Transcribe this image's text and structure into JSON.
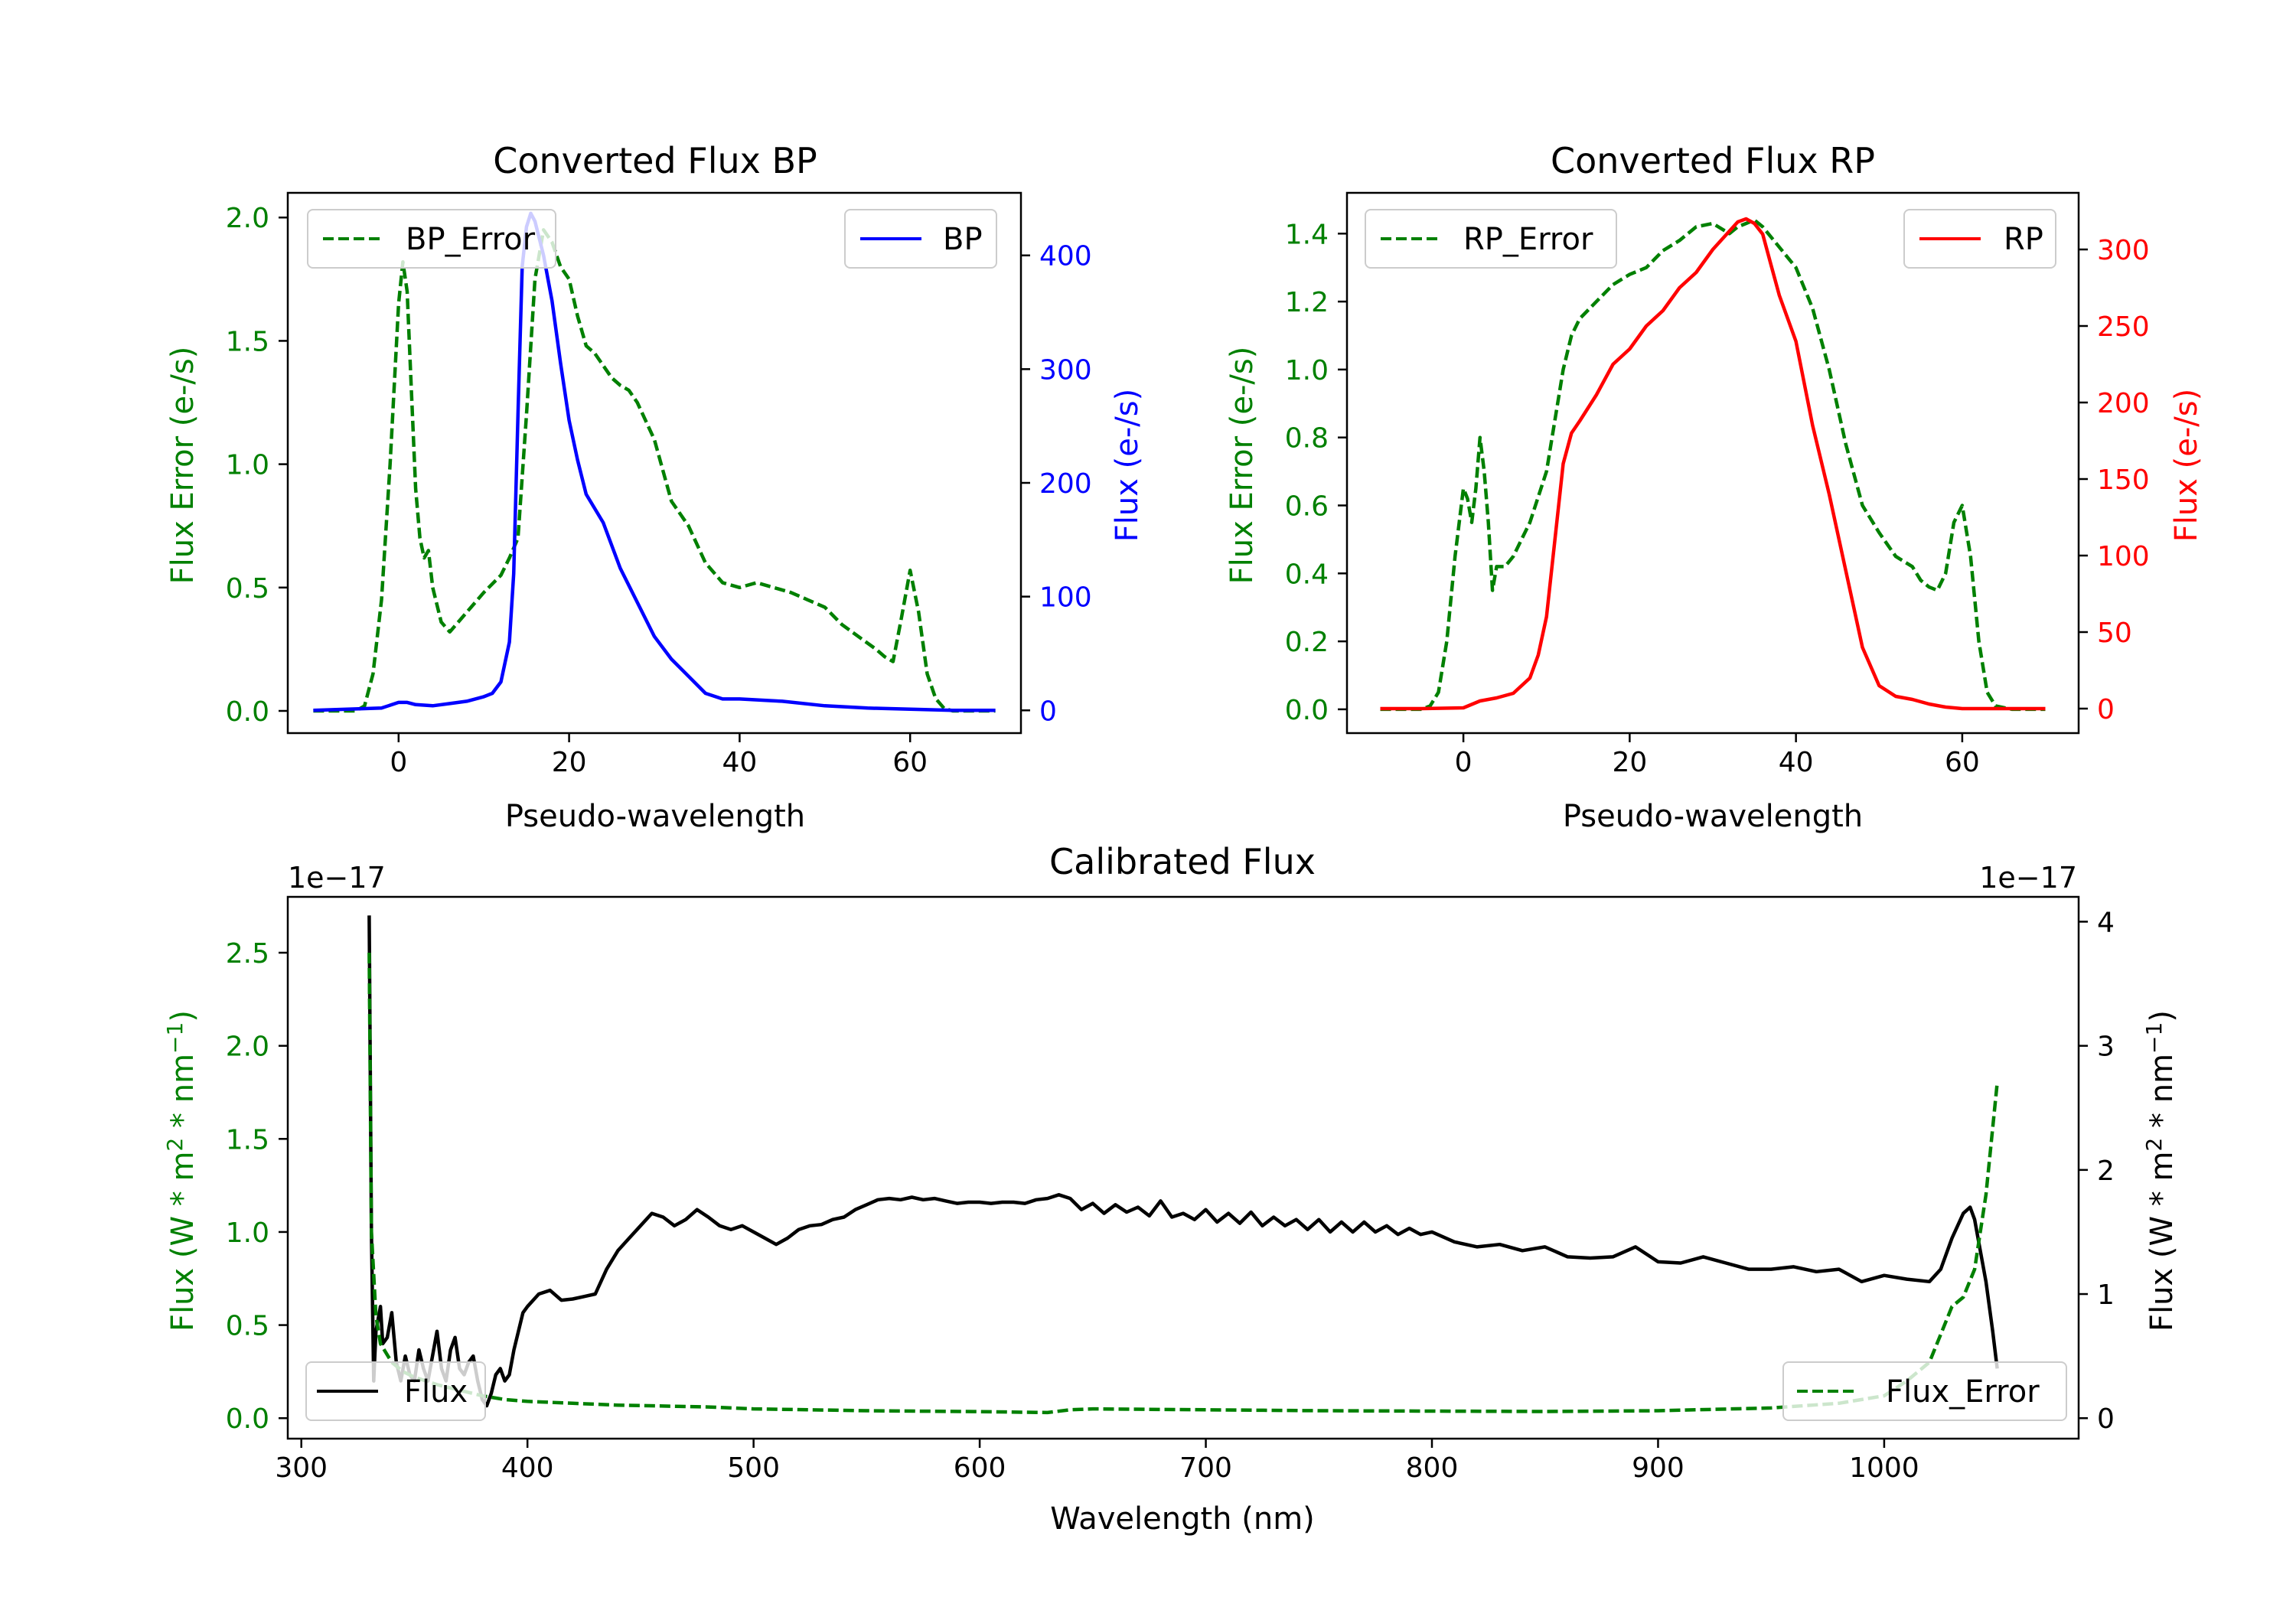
{
  "chart_data": [
    {
      "type": "line",
      "title": "Converted Flux BP",
      "xlabel": "Pseudo-wavelength",
      "ylabel_left": "Flux Error (e-/s)",
      "ylabel_right": "Flux (e-/s)",
      "xlim": [
        -13,
        73
      ],
      "ylim_left": [
        -0.09,
        2.1
      ],
      "ylim_right": [
        -20,
        455
      ],
      "xticks": [
        0,
        20,
        40,
        60
      ],
      "yticks_left": [
        0.0,
        0.5,
        1.0,
        1.5,
        2.0
      ],
      "yticks_right": [
        0,
        100,
        200,
        300,
        400
      ],
      "left_color": "#008000",
      "right_color": "#0000ff",
      "series": [
        {
          "name": "BP_Error",
          "axis": "left",
          "style": "dashed",
          "color": "#008000",
          "x": [
            -10,
            -5,
            -4,
            -3,
            -2,
            -1,
            0,
            0.5,
            1,
            1.5,
            2,
            2.5,
            3,
            3.5,
            4,
            5,
            6,
            8,
            10,
            12,
            13,
            14,
            15,
            16,
            17,
            18,
            19,
            20,
            21,
            22,
            23,
            24,
            25,
            26,
            27,
            28,
            30,
            32,
            34,
            36,
            38,
            40,
            42,
            44,
            46,
            48,
            50,
            52,
            54,
            56,
            57,
            58,
            59,
            60,
            61,
            62,
            63,
            64,
            65,
            66,
            68,
            70
          ],
          "y": [
            0,
            0,
            0.02,
            0.15,
            0.45,
            1.0,
            1.65,
            1.82,
            1.7,
            1.3,
            0.9,
            0.7,
            0.62,
            0.65,
            0.5,
            0.36,
            0.32,
            0.4,
            0.48,
            0.55,
            0.62,
            0.7,
            1.2,
            1.75,
            1.95,
            1.9,
            1.8,
            1.75,
            1.6,
            1.48,
            1.45,
            1.4,
            1.35,
            1.32,
            1.3,
            1.25,
            1.1,
            0.85,
            0.75,
            0.6,
            0.52,
            0.5,
            0.52,
            0.5,
            0.48,
            0.45,
            0.42,
            0.35,
            0.3,
            0.25,
            0.22,
            0.2,
            0.38,
            0.57,
            0.4,
            0.15,
            0.05,
            0.01,
            0,
            0,
            0,
            0
          ]
        },
        {
          "name": "BP",
          "axis": "right",
          "style": "solid",
          "color": "#0000ff",
          "x": [
            -10,
            -2,
            0,
            1,
            2,
            4,
            6,
            8,
            10,
            11,
            12,
            13,
            13.5,
            14,
            14.5,
            15,
            15.5,
            16,
            17,
            18,
            19,
            20,
            21,
            22,
            24,
            26,
            28,
            30,
            32,
            34,
            36,
            38,
            40,
            45,
            50,
            55,
            60,
            65,
            70
          ],
          "y": [
            0,
            2,
            7,
            7,
            5,
            4,
            6,
            8,
            12,
            15,
            25,
            60,
            120,
            260,
            390,
            425,
            437,
            430,
            400,
            360,
            305,
            255,
            220,
            190,
            165,
            125,
            95,
            65,
            45,
            30,
            15,
            10,
            10,
            8,
            4,
            2,
            1,
            0,
            0
          ]
        }
      ],
      "legend": [
        {
          "label": "BP_Error",
          "position": "upper left"
        },
        {
          "label": "BP",
          "position": "upper right"
        }
      ]
    },
    {
      "type": "line",
      "title": "Converted Flux RP",
      "xlabel": "Pseudo-wavelength",
      "ylabel_left": "Flux Error (e-/s)",
      "ylabel_right": "Flux (e-/s)",
      "xlim": [
        -14,
        74
      ],
      "ylim_left": [
        -0.07,
        1.52
      ],
      "ylim_right": [
        -16,
        337
      ],
      "xticks": [
        0,
        20,
        40,
        60
      ],
      "yticks_left": [
        0.0,
        0.2,
        0.4,
        0.6,
        0.8,
        1.0,
        1.2,
        1.4
      ],
      "yticks_right": [
        0,
        50,
        100,
        150,
        200,
        250,
        300
      ],
      "left_color": "#008000",
      "right_color": "#ff0000",
      "series": [
        {
          "name": "RP_Error",
          "axis": "left",
          "style": "dashed",
          "color": "#008000",
          "x": [
            -10,
            -5,
            -4,
            -3,
            -2,
            -1,
            0,
            0.5,
            1,
            1.5,
            2,
            2.5,
            3,
            3.5,
            4,
            5,
            6,
            7,
            8,
            10,
            11,
            12,
            13,
            14,
            16,
            18,
            20,
            22,
            24,
            26,
            28,
            30,
            32,
            33,
            34,
            35,
            36,
            38,
            40,
            42,
            44,
            46,
            48,
            50,
            52,
            54,
            55,
            56,
            57,
            58,
            59,
            60,
            61,
            62,
            63,
            64,
            66,
            70
          ],
          "y": [
            0,
            0,
            0.01,
            0.05,
            0.2,
            0.45,
            0.65,
            0.62,
            0.55,
            0.65,
            0.8,
            0.7,
            0.55,
            0.35,
            0.42,
            0.42,
            0.45,
            0.5,
            0.55,
            0.7,
            0.85,
            1.0,
            1.1,
            1.15,
            1.2,
            1.25,
            1.28,
            1.3,
            1.35,
            1.38,
            1.42,
            1.43,
            1.4,
            1.42,
            1.43,
            1.44,
            1.42,
            1.36,
            1.3,
            1.18,
            1.0,
            0.78,
            0.6,
            0.52,
            0.45,
            0.42,
            0.38,
            0.36,
            0.35,
            0.4,
            0.55,
            0.6,
            0.45,
            0.2,
            0.05,
            0.01,
            0,
            0
          ]
        },
        {
          "name": "RP",
          "axis": "right",
          "style": "solid",
          "color": "#ff0000",
          "x": [
            -10,
            -5,
            0,
            2,
            4,
            6,
            8,
            9,
            10,
            11,
            12,
            13,
            14,
            16,
            18,
            20,
            22,
            24,
            26,
            28,
            30,
            32,
            33,
            34,
            35,
            36,
            37,
            38,
            40,
            42,
            44,
            46,
            48,
            50,
            52,
            54,
            56,
            58,
            60,
            65,
            70
          ],
          "y": [
            0,
            0,
            0.5,
            5,
            7,
            10,
            20,
            35,
            60,
            110,
            160,
            180,
            188,
            205,
            225,
            235,
            250,
            260,
            275,
            285,
            300,
            312,
            318,
            320,
            317,
            310,
            290,
            270,
            240,
            185,
            140,
            90,
            40,
            15,
            8,
            6,
            3,
            1,
            0,
            0,
            0
          ]
        }
      ],
      "legend": [
        {
          "label": "RP_Error",
          "position": "upper left"
        },
        {
          "label": "RP",
          "position": "upper right"
        }
      ]
    },
    {
      "type": "line",
      "title": "Calibrated Flux",
      "xlabel": "Wavelength (nm)",
      "ylabel_left": "Flux (W * m^2 * nm^-1)",
      "ylabel_right": "Flux (W * m^2 * nm^-1)",
      "offset_text_left": "1e−17",
      "offset_text_right": "1e−17",
      "xlim": [
        294,
        1086
      ],
      "ylim_left": [
        -0.11,
        2.8
      ],
      "ylim_right": [
        -0.165,
        4.2
      ],
      "xticks": [
        300,
        400,
        500,
        600,
        700,
        800,
        900,
        1000
      ],
      "yticks_left": [
        0.0,
        0.5,
        1.0,
        1.5,
        2.0,
        2.5
      ],
      "yticks_right": [
        0,
        1,
        2,
        3,
        4
      ],
      "left_color": "#008000",
      "right_color": "#000000",
      "series": [
        {
          "name": "Flux",
          "axis": "right",
          "style": "solid",
          "color": "#000000",
          "x": [
            330,
            331,
            332,
            333,
            335,
            336,
            338,
            340,
            342,
            344,
            346,
            348,
            350,
            352,
            354,
            356,
            358,
            360,
            362,
            364,
            366,
            368,
            370,
            372,
            374,
            376,
            378,
            380,
            382,
            384,
            386,
            388,
            390,
            392,
            394,
            396,
            398,
            400,
            405,
            410,
            415,
            420,
            425,
            430,
            435,
            440,
            445,
            450,
            455,
            460,
            465,
            470,
            475,
            480,
            485,
            490,
            495,
            500,
            505,
            510,
            515,
            520,
            525,
            530,
            535,
            540,
            545,
            550,
            555,
            560,
            565,
            570,
            575,
            580,
            585,
            590,
            595,
            600,
            605,
            610,
            615,
            620,
            625,
            630,
            635,
            640,
            645,
            650,
            655,
            660,
            665,
            670,
            675,
            680,
            685,
            690,
            695,
            700,
            705,
            710,
            715,
            720,
            725,
            730,
            735,
            740,
            745,
            750,
            755,
            760,
            765,
            770,
            775,
            780,
            785,
            790,
            795,
            800,
            810,
            820,
            830,
            840,
            850,
            860,
            870,
            880,
            890,
            900,
            910,
            920,
            930,
            940,
            950,
            960,
            970,
            980,
            990,
            1000,
            1010,
            1020,
            1025,
            1030,
            1035,
            1038,
            1040,
            1042,
            1045,
            1048,
            1050
          ],
          "y": [
            4.05,
            1.5,
            0.3,
            0.7,
            0.9,
            0.6,
            0.65,
            0.85,
            0.45,
            0.3,
            0.5,
            0.35,
            0.3,
            0.55,
            0.4,
            0.3,
            0.5,
            0.7,
            0.4,
            0.3,
            0.55,
            0.65,
            0.4,
            0.35,
            0.45,
            0.5,
            0.3,
            0.15,
            0.1,
            0.2,
            0.35,
            0.4,
            0.3,
            0.35,
            0.55,
            0.7,
            0.85,
            0.9,
            1.0,
            1.03,
            0.95,
            0.96,
            0.98,
            1.0,
            1.2,
            1.35,
            1.45,
            1.55,
            1.65,
            1.62,
            1.55,
            1.6,
            1.68,
            1.62,
            1.55,
            1.52,
            1.55,
            1.5,
            1.45,
            1.4,
            1.45,
            1.52,
            1.55,
            1.56,
            1.6,
            1.62,
            1.68,
            1.72,
            1.76,
            1.77,
            1.76,
            1.78,
            1.76,
            1.77,
            1.75,
            1.73,
            1.74,
            1.74,
            1.73,
            1.74,
            1.74,
            1.73,
            1.76,
            1.77,
            1.8,
            1.77,
            1.68,
            1.73,
            1.65,
            1.72,
            1.66,
            1.7,
            1.63,
            1.75,
            1.62,
            1.65,
            1.6,
            1.68,
            1.58,
            1.65,
            1.57,
            1.66,
            1.55,
            1.62,
            1.55,
            1.6,
            1.52,
            1.6,
            1.5,
            1.58,
            1.5,
            1.58,
            1.5,
            1.55,
            1.48,
            1.53,
            1.48,
            1.5,
            1.42,
            1.38,
            1.4,
            1.35,
            1.38,
            1.3,
            1.29,
            1.3,
            1.38,
            1.26,
            1.25,
            1.3,
            1.25,
            1.2,
            1.2,
            1.22,
            1.18,
            1.2,
            1.1,
            1.15,
            1.12,
            1.1,
            1.2,
            1.45,
            1.65,
            1.7,
            1.6,
            1.4,
            1.1,
            0.7,
            0.4
          ]
        },
        {
          "name": "Flux_Error",
          "axis": "left",
          "style": "dashed",
          "color": "#008000",
          "x": [
            330,
            331,
            333,
            335,
            340,
            345,
            350,
            360,
            370,
            380,
            390,
            400,
            420,
            440,
            460,
            480,
            500,
            550,
            600,
            630,
            640,
            650,
            700,
            750,
            800,
            850,
            900,
            950,
            980,
            1000,
            1010,
            1020,
            1025,
            1030,
            1035,
            1040,
            1045,
            1050
          ],
          "y": [
            2.5,
            1.0,
            0.55,
            0.4,
            0.3,
            0.25,
            0.22,
            0.18,
            0.15,
            0.12,
            0.1,
            0.09,
            0.08,
            0.07,
            0.065,
            0.06,
            0.05,
            0.04,
            0.035,
            0.03,
            0.045,
            0.05,
            0.045,
            0.04,
            0.038,
            0.036,
            0.04,
            0.055,
            0.08,
            0.12,
            0.2,
            0.3,
            0.45,
            0.6,
            0.65,
            0.8,
            1.2,
            1.8
          ]
        }
      ],
      "legend": [
        {
          "label": "Flux",
          "position": "lower left"
        },
        {
          "label": "Flux_Error",
          "position": "lower right"
        }
      ]
    }
  ]
}
